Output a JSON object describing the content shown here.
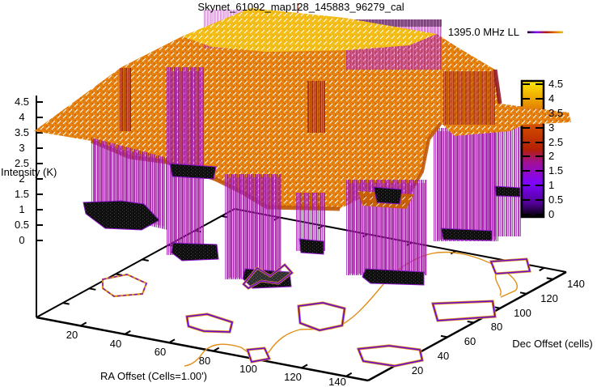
{
  "title": "Skynet_61092_map128_145883_96279_cal",
  "legend": {
    "label": "1395.0 MHz LL"
  },
  "axes": {
    "x": {
      "label": "RA Offset (Cells=1.00')",
      "ticks": [
        "20",
        "40",
        "60",
        "80",
        "100",
        "120",
        "140"
      ]
    },
    "y": {
      "label": "Dec Offset (cells)",
      "ticks": [
        "20",
        "40",
        "60",
        "80",
        "100",
        "120",
        "140"
      ]
    },
    "z": {
      "label": "Intensity (K)",
      "ticks": [
        "0",
        "0.5",
        "1",
        "1.5",
        "2",
        "2.5",
        "3",
        "3.5",
        "4",
        "4.5"
      ]
    },
    "colorbar": {
      "ticks": [
        "0",
        "0.5",
        "1",
        "1.5",
        "2",
        "2.5",
        "3",
        "3.5",
        "4",
        "4.5"
      ]
    }
  },
  "colors": {
    "surface_orange": "#e6820f",
    "plateau_gold": "#f2be17",
    "well_purple": "#a316a3",
    "floor_black": "#111111",
    "contour_orange": "#e09018",
    "contour_purple": "#6a0ad4",
    "palette": [
      "#000000",
      "#7f04ff",
      "#b42000",
      "#e48200",
      "#ffff00"
    ]
  },
  "chart_data": {
    "type": "heatmap",
    "render": "gnuplot pm3d 3D surface (splot) with hidden-line mesh, vertical well walls and base-plane contours",
    "title": "Skynet_61092_map128_145883_96279_cal",
    "series": [
      {
        "name": "1395.0 MHz LL"
      }
    ],
    "xlabel": "RA Offset (Cells=1.00')",
    "ylabel": "Dec Offset (cells)",
    "zlabel": "Intensity (K)",
    "x_range": [
      0,
      150
    ],
    "y_range": [
      0,
      150
    ],
    "z_range": [
      0,
      4.5
    ],
    "x_ticks": [
      20,
      40,
      60,
      80,
      100,
      120,
      140
    ],
    "y_ticks": [
      20,
      40,
      60,
      80,
      100,
      120,
      140
    ],
    "z_ticks": [
      0,
      0.5,
      1,
      1.5,
      2,
      2.5,
      3,
      3.5,
      4,
      4.5
    ],
    "colorbar": {
      "range": [
        0,
        4.5
      ],
      "tick_step": 0.5,
      "palette_stops": [
        [
          0,
          "#000000"
        ],
        [
          0.25,
          "#7f04ff"
        ],
        [
          0.5,
          "#b42000"
        ],
        [
          0.8,
          "#e48200"
        ],
        [
          1,
          "#ffff00"
        ]
      ]
    },
    "surface_summary": {
      "baseline_intensity_K": 3.6,
      "peak_plateau": {
        "intensity_K": 4.4,
        "approx_ra_cells": 30,
        "approx_dec_cells": 125
      },
      "wells": {
        "count": 8,
        "floor_intensity_K": [
          0.1,
          0.8
        ],
        "approx_locations_ra_dec_cells": [
          [
            18,
            34
          ],
          [
            66,
            10
          ],
          [
            100,
            20
          ],
          [
            148,
            22
          ],
          [
            40,
            60
          ],
          [
            90,
            60
          ],
          [
            30,
            105
          ],
          [
            75,
            100
          ]
        ]
      },
      "contour_levels_K_approx": [
        1.2,
        3.2
      ],
      "grid_on": false,
      "legend_position": "top-right"
    }
  }
}
